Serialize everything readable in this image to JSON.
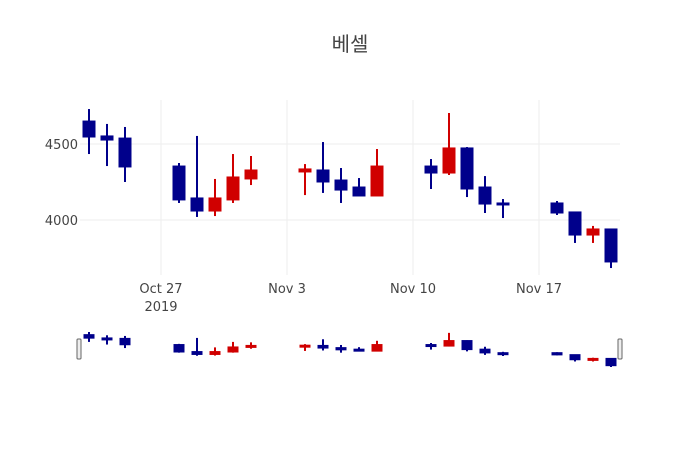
{
  "colors": {
    "increasing": "#d00000",
    "decreasing": "#00008b",
    "grid": "#eeeeee",
    "text": "#444444",
    "handle_stroke": "#666666"
  },
  "chart_data": {
    "type": "candlestick",
    "title": "베셀",
    "xlabel": "",
    "ylabel": "",
    "ylim": [
      3684,
      4730
    ],
    "yticks": [
      4000,
      4500
    ],
    "ytick_labels": [
      "4000",
      "4500"
    ],
    "xticks": [
      "2019-10-27",
      "2019-11-03",
      "2019-11-10",
      "2019-11-17"
    ],
    "xtick_labels": [
      [
        "Oct 27",
        "2019"
      ],
      [
        "Nov 3"
      ],
      [
        "Nov 10"
      ],
      [
        "Nov 17"
      ]
    ],
    "xrange": [
      "2019-10-22.5",
      "2019-11-21.5"
    ],
    "grid": true,
    "rangeslider": true,
    "increasing_color": "red",
    "decreasing_color": "blue",
    "dates": [
      "2019-10-23",
      "2019-10-24",
      "2019-10-25",
      "2019-10-28",
      "2019-10-29",
      "2019-10-30",
      "2019-10-31",
      "2019-11-01",
      "2019-11-04",
      "2019-11-05",
      "2019-11-06",
      "2019-11-07",
      "2019-11-08",
      "2019-11-11",
      "2019-11-12",
      "2019-11-13",
      "2019-11-14",
      "2019-11-15",
      "2019-11-18",
      "2019-11-19",
      "2019-11-20",
      "2019-11-21"
    ],
    "open": [
      4651,
      4553,
      4539,
      4355,
      4145,
      4059,
      4132,
      4270,
      4316,
      4329,
      4263,
      4217,
      4158,
      4355,
      4309,
      4474,
      4217,
      4112,
      4112,
      4053,
      3901,
      3941
    ],
    "high": [
      4730,
      4632,
      4612,
      4375,
      4553,
      4270,
      4434,
      4421,
      4368,
      4513,
      4342,
      4276,
      4467,
      4401,
      4704,
      4480,
      4289,
      4138,
      4125,
      4053,
      3961,
      3941
    ],
    "low": [
      4434,
      4355,
      4250,
      4112,
      4020,
      4026,
      4112,
      4230,
      4164,
      4178,
      4112,
      4158,
      4158,
      4204,
      4296,
      4151,
      4046,
      4013,
      4033,
      3849,
      3849,
      3684
    ],
    "close": [
      4546,
      4526,
      4349,
      4132,
      4059,
      4145,
      4283,
      4329,
      4336,
      4250,
      4197,
      4158,
      4355,
      4309,
      4474,
      4204,
      4105,
      4099,
      4046,
      3901,
      3941,
      3724
    ]
  }
}
